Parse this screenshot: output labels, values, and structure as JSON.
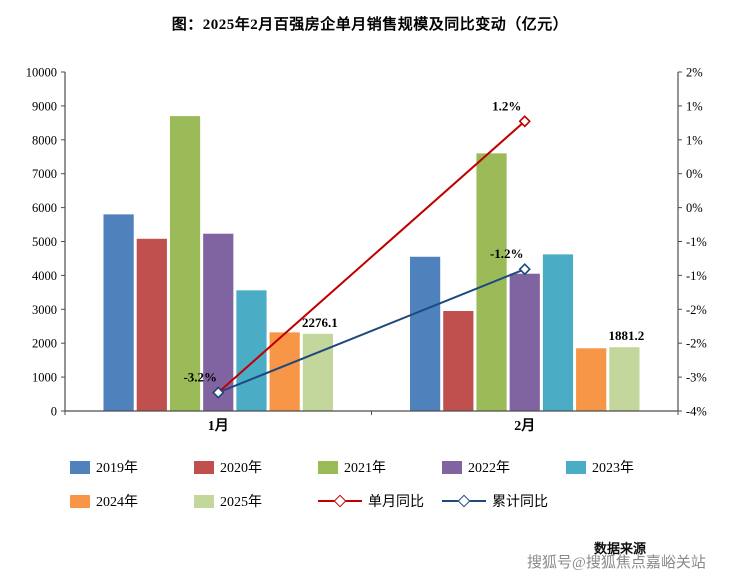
{
  "footer": {
    "source_label": "数据来源",
    "watermark": "搜狐号@搜狐焦点嘉峪关站"
  },
  "chart_data": {
    "type": "bar",
    "subtype": "grouped-bar with dual-axis line overlay",
    "title": "图：2025年2月百强房企单月销售规模及同比变动（亿元）",
    "categories": [
      "1月",
      "2月"
    ],
    "bar_series": [
      {
        "name": "2019年",
        "color": "#4F81BD",
        "values": [
          5800,
          4550
        ]
      },
      {
        "name": "2020年",
        "color": "#C0504D",
        "values": [
          5080,
          2950
        ]
      },
      {
        "name": "2021年",
        "color": "#9BBB59",
        "values": [
          8700,
          7600
        ]
      },
      {
        "name": "2022年",
        "color": "#8064A2",
        "values": [
          5230,
          4050
        ]
      },
      {
        "name": "2023年",
        "color": "#4BACC6",
        "values": [
          3560,
          4620
        ]
      },
      {
        "name": "2024年",
        "color": "#F79646",
        "values": [
          2320,
          1850
        ]
      },
      {
        "name": "2025年",
        "color": "#C3D69B",
        "values": [
          2276.1,
          1881.2
        ],
        "point_labels": [
          "2276.1",
          "1881.2"
        ]
      }
    ],
    "line_series": [
      {
        "name": "单月同比",
        "color": "#C00000",
        "values": [
          -3.2,
          1.2
        ],
        "point_labels": [
          "-3.2%",
          "1.2%"
        ]
      },
      {
        "name": "累计同比",
        "color": "#1F497D",
        "values": [
          -3.2,
          -1.2
        ],
        "point_labels": [
          "",
          "-1.2%"
        ]
      }
    ],
    "left_axis": {
      "min": 0,
      "max": 10000,
      "step": 1000,
      "tick_labels": [
        "0",
        "1000",
        "2000",
        "3000",
        "4000",
        "5000",
        "6000",
        "7000",
        "8000",
        "9000",
        "10000"
      ]
    },
    "right_axis": {
      "min": -3.5,
      "max": 2,
      "tick_labels": [
        "2%",
        "1%",
        "1%",
        "0%",
        "0%",
        "-1%",
        "-1%",
        "-2%",
        "-2%",
        "-3%",
        "-4%"
      ]
    },
    "grid": false,
    "legend_position": "bottom"
  }
}
